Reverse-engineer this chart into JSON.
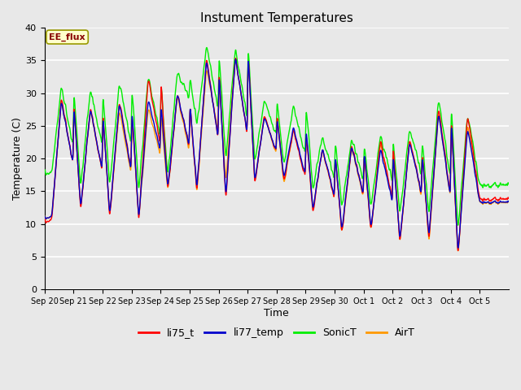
{
  "title": "Instument Temperatures",
  "xlabel": "Time",
  "ylabel": "Temperature (C)",
  "ylim": [
    0,
    40
  ],
  "annotation_text": "EE_flux",
  "annotation_bg": "#ffffcc",
  "annotation_edge": "#cccc00",
  "annotation_text_color": "#880000",
  "bg_color": "#e8e8e8",
  "plot_bg": "#e8e8e8",
  "line_colors": {
    "li75_t": "#ff0000",
    "li77_temp": "#0000cc",
    "SonicT": "#00ee00",
    "AirT": "#ff9900"
  },
  "line_width": 1.0,
  "tick_labels": [
    "Sep 20",
    "Sep 21",
    "Sep 22",
    "Sep 23",
    "Sep 24",
    "Sep 25",
    "Sep 26",
    "Sep 27",
    "Sep 28",
    "Sep 29",
    "Sep 30",
    "Oct 1",
    "Oct 2",
    "Oct 3",
    "Oct 4",
    "Oct 5"
  ],
  "num_days": 16,
  "figsize": [
    6.4,
    4.8
  ],
  "dpi": 100
}
